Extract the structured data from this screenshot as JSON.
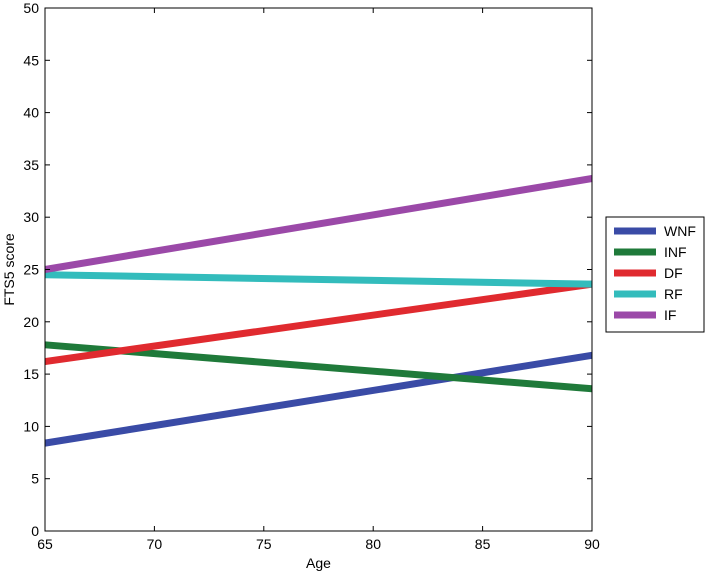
{
  "chart_data": {
    "type": "line",
    "xlabel": "Age",
    "ylabel": "FTS5 score",
    "xlim": [
      65,
      90
    ],
    "ylim": [
      0,
      50
    ],
    "xticks": [
      65,
      70,
      75,
      80,
      85,
      90
    ],
    "yticks": [
      0,
      5,
      10,
      15,
      20,
      25,
      30,
      35,
      40,
      45,
      50
    ],
    "x": [
      65,
      90
    ],
    "grid": false,
    "legend_position": "right",
    "series": [
      {
        "name": "WNF",
        "color": "#3a4ba6",
        "values": [
          8.4,
          16.8
        ]
      },
      {
        "name": "INF",
        "color": "#1f7a3a",
        "values": [
          17.8,
          13.6
        ]
      },
      {
        "name": "DF",
        "color": "#e02a2f",
        "values": [
          16.2,
          23.6
        ]
      },
      {
        "name": "RF",
        "color": "#33bcbc",
        "values": [
          24.5,
          23.6
        ]
      },
      {
        "name": "IF",
        "color": "#9b49a8",
        "values": [
          25.0,
          33.7
        ]
      }
    ]
  }
}
